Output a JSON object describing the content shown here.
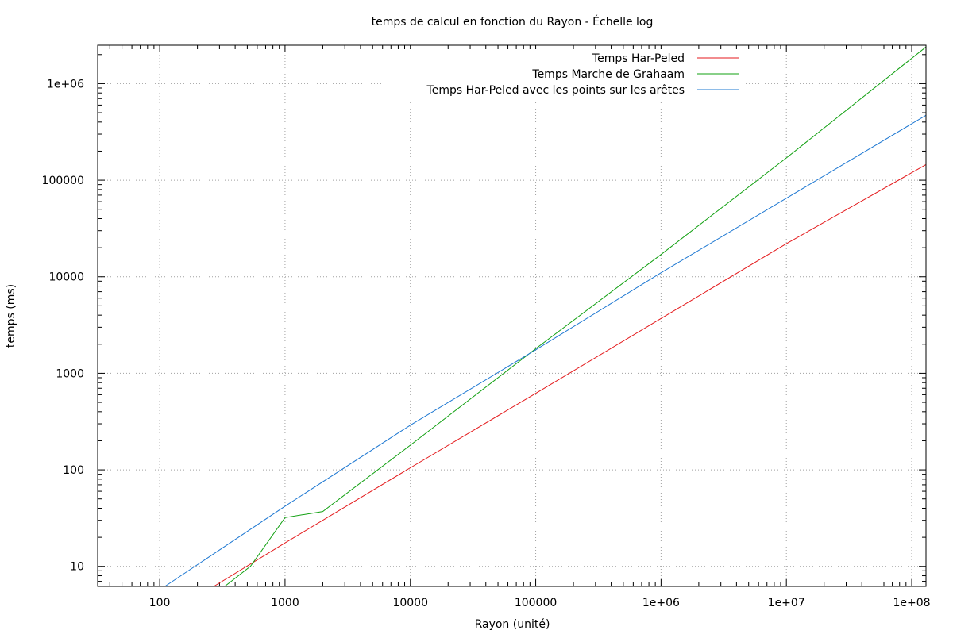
{
  "chart_data": {
    "type": "line",
    "title": "temps de calcul en fonction du Rayon - Échelle log",
    "xlabel": "Rayon (unité)",
    "ylabel": "temps (ms)",
    "xscale": "log",
    "yscale": "log",
    "xlim": [
      32,
      130000000
    ],
    "ylim": [
      6.2,
      2500000
    ],
    "grid": true,
    "legend_position": "top-right",
    "x_ticks": [
      {
        "value": 100,
        "label": "100"
      },
      {
        "value": 1000,
        "label": "1000"
      },
      {
        "value": 10000,
        "label": "10000"
      },
      {
        "value": 100000,
        "label": "100000"
      },
      {
        "value": 1000000,
        "label": "1e+06"
      },
      {
        "value": 10000000,
        "label": "1e+07"
      },
      {
        "value": 100000000,
        "label": "1e+08"
      }
    ],
    "y_ticks": [
      {
        "value": 10,
        "label": "10"
      },
      {
        "value": 100,
        "label": "100"
      },
      {
        "value": 1000,
        "label": "1000"
      },
      {
        "value": 10000,
        "label": "10000"
      },
      {
        "value": 100000,
        "label": "100000"
      },
      {
        "value": 1000000,
        "label": "1e+06"
      }
    ],
    "series": [
      {
        "name": "Temps Har-Peled",
        "color": "#e41a1c",
        "x": [
          270,
          1000,
          10000,
          100000,
          1000000,
          10000000,
          130000000
        ],
        "y": [
          6.2,
          17.5,
          105,
          620,
          3700,
          22000,
          145000
        ]
      },
      {
        "name": "Temps Marche de Grahaam",
        "color": "#11a011",
        "x": [
          330,
          530,
          1000,
          2000,
          10000,
          100000,
          1000000,
          10000000,
          130000000
        ],
        "y": [
          6.2,
          10,
          32,
          37,
          180,
          1800,
          17000,
          170000,
          2400000
        ]
      },
      {
        "name": "Temps Har-Peled avec les points sur les arêtes",
        "color": "#1e78d2",
        "x": [
          110,
          1000,
          10000,
          100000,
          1000000,
          10000000,
          130000000
        ],
        "y": [
          6.2,
          42,
          290,
          1750,
          11000,
          65000,
          470000
        ]
      }
    ]
  }
}
